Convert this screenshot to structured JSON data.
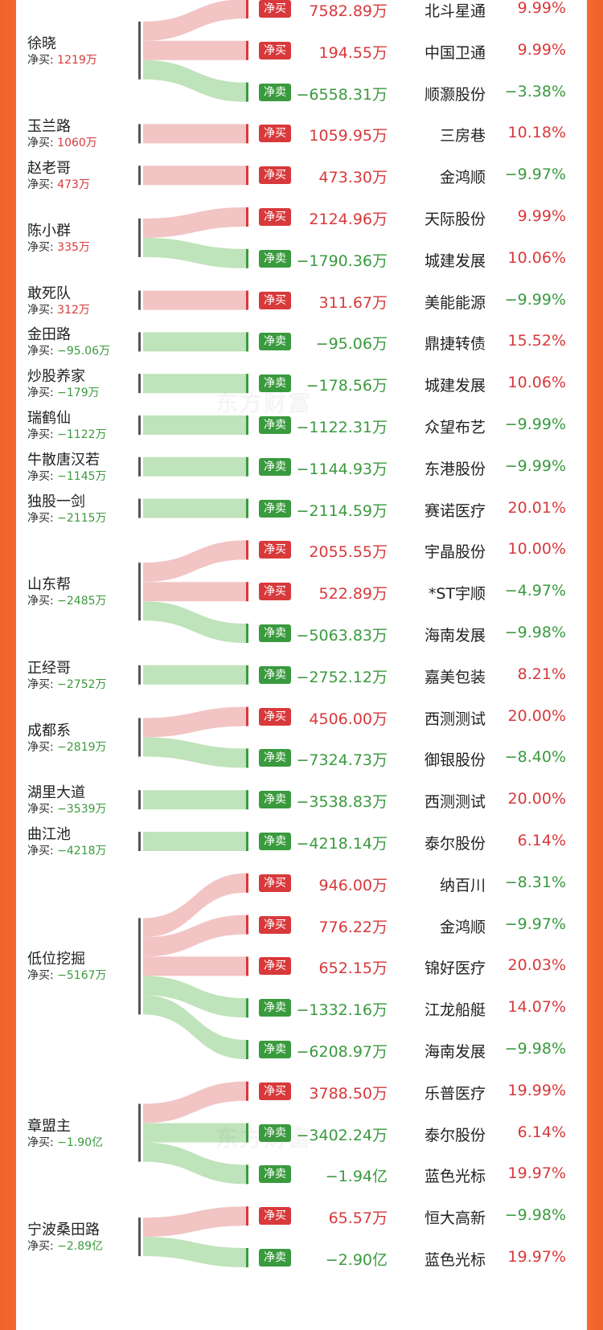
{
  "colors": {
    "buy": "#d8393b",
    "sell": "#3a9a3e",
    "buy_flow": "#f2c4c4",
    "sell_flow": "#bfe3ba",
    "accent": "#f0622c"
  },
  "net_prefix": "净买: ",
  "watermark": "东方财富",
  "chart_data": {
    "type": "sankey",
    "title": "",
    "traders": [
      {
        "name": "徐晓",
        "net": "1219万",
        "net_sign": "pos",
        "trades": [
          {
            "action": "净买",
            "amount": "7582.89万",
            "stock": "北斗星通",
            "change": "9.99%"
          },
          {
            "action": "净买",
            "amount": "194.55万",
            "stock": "中国卫通",
            "change": "9.99%"
          },
          {
            "action": "净卖",
            "amount": "−6558.31万",
            "stock": "顺灏股份",
            "change": "−3.38%"
          }
        ]
      },
      {
        "name": "玉兰路",
        "net": "1060万",
        "net_sign": "pos",
        "trades": [
          {
            "action": "净买",
            "amount": "1059.95万",
            "stock": "三房巷",
            "change": "10.18%"
          }
        ]
      },
      {
        "name": "赵老哥",
        "net": "473万",
        "net_sign": "pos",
        "trades": [
          {
            "action": "净买",
            "amount": "473.30万",
            "stock": "金鸿顺",
            "change": "−9.97%"
          }
        ]
      },
      {
        "name": "陈小群",
        "net": "335万",
        "net_sign": "pos",
        "trades": [
          {
            "action": "净买",
            "amount": "2124.96万",
            "stock": "天际股份",
            "change": "9.99%"
          },
          {
            "action": "净卖",
            "amount": "−1790.36万",
            "stock": "城建发展",
            "change": "10.06%"
          }
        ]
      },
      {
        "name": "敢死队",
        "net": "312万",
        "net_sign": "pos",
        "trades": [
          {
            "action": "净买",
            "amount": "311.67万",
            "stock": "美能能源",
            "change": "−9.99%"
          }
        ]
      },
      {
        "name": "金田路",
        "net": "−95.06万",
        "net_sign": "neg",
        "trades": [
          {
            "action": "净卖",
            "amount": "−95.06万",
            "stock": "鼎捷转债",
            "change": "15.52%"
          }
        ]
      },
      {
        "name": "炒股养家",
        "net": "−179万",
        "net_sign": "neg",
        "trades": [
          {
            "action": "净卖",
            "amount": "−178.56万",
            "stock": "城建发展",
            "change": "10.06%"
          }
        ]
      },
      {
        "name": "瑞鹤仙",
        "net": "−1122万",
        "net_sign": "neg",
        "trades": [
          {
            "action": "净卖",
            "amount": "−1122.31万",
            "stock": "众望布艺",
            "change": "−9.99%"
          }
        ]
      },
      {
        "name": "牛散唐汉若",
        "net": "−1145万",
        "net_sign": "neg",
        "trades": [
          {
            "action": "净卖",
            "amount": "−1144.93万",
            "stock": "东港股份",
            "change": "−9.99%"
          }
        ]
      },
      {
        "name": "独股一剑",
        "net": "−2115万",
        "net_sign": "neg",
        "trades": [
          {
            "action": "净卖",
            "amount": "−2114.59万",
            "stock": "赛诺医疗",
            "change": "20.01%"
          }
        ]
      },
      {
        "name": "山东帮",
        "net": "−2485万",
        "net_sign": "neg",
        "trades": [
          {
            "action": "净买",
            "amount": "2055.55万",
            "stock": "宇晶股份",
            "change": "10.00%"
          },
          {
            "action": "净买",
            "amount": "522.89万",
            "stock": "*ST宇顺",
            "change": "−4.97%"
          },
          {
            "action": "净卖",
            "amount": "−5063.83万",
            "stock": "海南发展",
            "change": "−9.98%"
          }
        ]
      },
      {
        "name": "正经哥",
        "net": "−2752万",
        "net_sign": "neg",
        "trades": [
          {
            "action": "净卖",
            "amount": "−2752.12万",
            "stock": "嘉美包装",
            "change": "8.21%"
          }
        ]
      },
      {
        "name": "成都系",
        "net": "−2819万",
        "net_sign": "neg",
        "trades": [
          {
            "action": "净买",
            "amount": "4506.00万",
            "stock": "西测测试",
            "change": "20.00%"
          },
          {
            "action": "净卖",
            "amount": "−7324.73万",
            "stock": "御银股份",
            "change": "−8.40%"
          }
        ]
      },
      {
        "name": "湖里大道",
        "net": "−3539万",
        "net_sign": "neg",
        "trades": [
          {
            "action": "净卖",
            "amount": "−3538.83万",
            "stock": "西测测试",
            "change": "20.00%"
          }
        ]
      },
      {
        "name": "曲江池",
        "net": "−4218万",
        "net_sign": "neg",
        "trades": [
          {
            "action": "净卖",
            "amount": "−4218.14万",
            "stock": "泰尔股份",
            "change": "6.14%"
          }
        ]
      },
      {
        "name": "低位挖掘",
        "net": "−5167万",
        "net_sign": "neg",
        "trades": [
          {
            "action": "净买",
            "amount": "946.00万",
            "stock": "纳百川",
            "change": "−8.31%"
          },
          {
            "action": "净买",
            "amount": "776.22万",
            "stock": "金鸿顺",
            "change": "−9.97%"
          },
          {
            "action": "净买",
            "amount": "652.15万",
            "stock": "锦好医疗",
            "change": "20.03%"
          },
          {
            "action": "净卖",
            "amount": "−1332.16万",
            "stock": "江龙船艇",
            "change": "14.07%"
          },
          {
            "action": "净卖",
            "amount": "−6208.97万",
            "stock": "海南发展",
            "change": "−9.98%"
          }
        ]
      },
      {
        "name": "章盟主",
        "net": "−1.90亿",
        "net_sign": "neg",
        "trades": [
          {
            "action": "净买",
            "amount": "3788.50万",
            "stock": "乐普医疗",
            "change": "19.99%"
          },
          {
            "action": "净卖",
            "amount": "−3402.24万",
            "stock": "泰尔股份",
            "change": "6.14%"
          },
          {
            "action": "净卖",
            "amount": "−1.94亿",
            "stock": "蓝色光标",
            "change": "19.97%"
          }
        ]
      },
      {
        "name": "宁波桑田路",
        "net": "−2.89亿",
        "net_sign": "neg",
        "trades": [
          {
            "action": "净买",
            "amount": "65.57万",
            "stock": "恒大高新",
            "change": "−9.98%"
          },
          {
            "action": "净卖",
            "amount": "−2.90亿",
            "stock": "蓝色光标",
            "change": "19.97%"
          }
        ]
      }
    ]
  }
}
